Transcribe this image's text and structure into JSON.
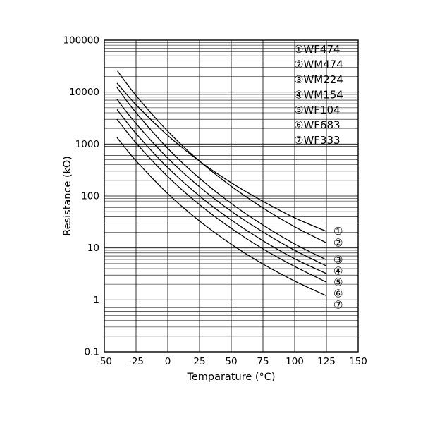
{
  "page": {
    "background": "#ffffff"
  },
  "chart_data": {
    "type": "line",
    "title": "",
    "xlabel": "Temparature (°C)",
    "ylabel": "Resistance (kΩ)",
    "x_ticks": [
      -50,
      -25,
      0,
      25,
      50,
      75,
      100,
      125,
      150
    ],
    "y_ticks": [
      0.1,
      1,
      10,
      100,
      1000,
      10000,
      100000
    ],
    "y_tick_labels": [
      "0.1",
      "1",
      "10",
      "100",
      "1000",
      "10000",
      "100000"
    ],
    "xlim": [
      -50,
      150
    ],
    "ylim": [
      0.1,
      100000
    ],
    "y_scale": "log",
    "grid": true,
    "legend_position": "top-right-inside",
    "line_color": "#000000",
    "temperatures": [
      -40,
      -25,
      0,
      25,
      50,
      75,
      100,
      125
    ],
    "series": [
      {
        "index": "①",
        "label": "WF474",
        "values": [
          14900,
          5725,
          1464,
          470,
          180,
          79,
          38,
          20.8
        ]
      },
      {
        "index": "②",
        "label": "WM474",
        "values": [
          26200,
          8590,
          1760,
          470,
          154,
          59,
          25.5,
          12.5
        ]
      },
      {
        "index": "③",
        "label": "WM224",
        "values": [
          12280,
          4020,
          824,
          220,
          72,
          27.6,
          11.9,
          5.9
        ]
      },
      {
        "index": "④",
        "label": "WM154",
        "values": [
          7280,
          2475,
          536,
          150,
          51,
          20.3,
          9.0,
          4.5
        ]
      },
      {
        "index": "⑤",
        "label": "WF104",
        "values": [
          4620,
          1596,
          352,
          100,
          34.5,
          13.8,
          6.2,
          3.2
        ]
      },
      {
        "index": "⑥",
        "label": "WF683",
        "values": [
          3005,
          1049,
          236,
          68,
          23.8,
          9.6,
          4.4,
          2.2
        ]
      },
      {
        "index": "⑦",
        "label": "WF333",
        "values": [
          1330,
          476,
          111,
          33,
          11.8,
          4.9,
          2.3,
          1.2
        ]
      }
    ]
  }
}
